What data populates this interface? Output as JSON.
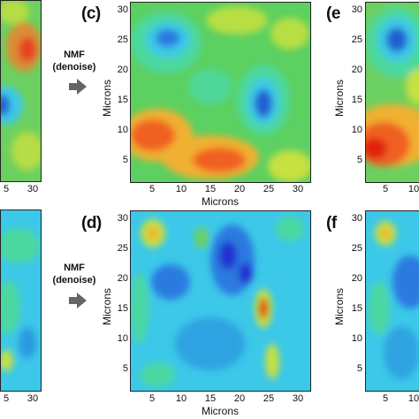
{
  "figure": {
    "panels": [
      {
        "id": "c",
        "label": "(c)",
        "xlabel": "Microns",
        "ylabel": "Microns"
      },
      {
        "id": "d",
        "label": "(d)",
        "xlabel": "Microns",
        "ylabel": "Microns"
      },
      {
        "id": "e",
        "label": "(e",
        "ylabel": "Microns"
      },
      {
        "id": "f",
        "label": "(f",
        "ylabel": "Microns"
      }
    ],
    "arrow_text": [
      "NMF",
      "(denoise)"
    ],
    "y_ticks": [
      "30",
      "25",
      "20",
      "15",
      "10",
      "5"
    ],
    "x_ticks_mid": [
      "5",
      "10",
      "15",
      "20",
      "25",
      "30"
    ],
    "x_ticks_left": [
      "5",
      "30"
    ],
    "x_ticks_right_partial": [
      "5",
      "10"
    ],
    "x_ticks_right_partial_bottom": [
      "5",
      "10"
    ],
    "colormap": [
      "#2030d0",
      "#2a7ae0",
      "#3cc8e8",
      "#4cd8a0",
      "#5cd060",
      "#c8e040",
      "#f0b030",
      "#f06020",
      "#e02010"
    ]
  }
}
